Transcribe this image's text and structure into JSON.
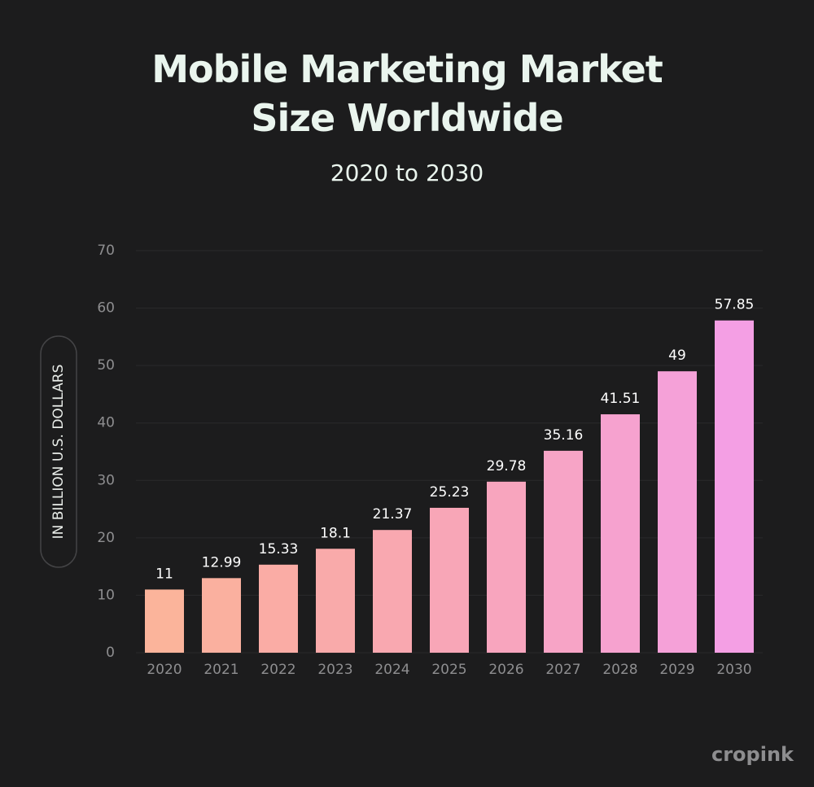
{
  "chart_data": {
    "type": "bar",
    "title": "Mobile Marketing Market Size Worldwide",
    "subtitle": "2020 to 2030",
    "y_label": "IN BILLION U.S. DOLLARS",
    "logo": "cropink",
    "categories": [
      "2020",
      "2021",
      "2022",
      "2023",
      "2024",
      "2025",
      "2026",
      "2027",
      "2028",
      "2029",
      "2030"
    ],
    "values": [
      11,
      12.99,
      15.33,
      18.1,
      21.37,
      25.23,
      29.78,
      35.16,
      41.51,
      49,
      57.85
    ],
    "colors": [
      "#fbb49b",
      "#fab09f",
      "#faaca5",
      "#f9aaaa",
      "#f9a8b0",
      "#f8a6b7",
      "#f8a5be",
      "#f7a4c6",
      "#f6a2cf",
      "#f5a1d8",
      "#f49fe4"
    ],
    "ylim": [
      0,
      70
    ],
    "yticks": [
      0,
      10,
      20,
      30,
      40,
      50,
      60,
      70
    ],
    "grid": true
  }
}
